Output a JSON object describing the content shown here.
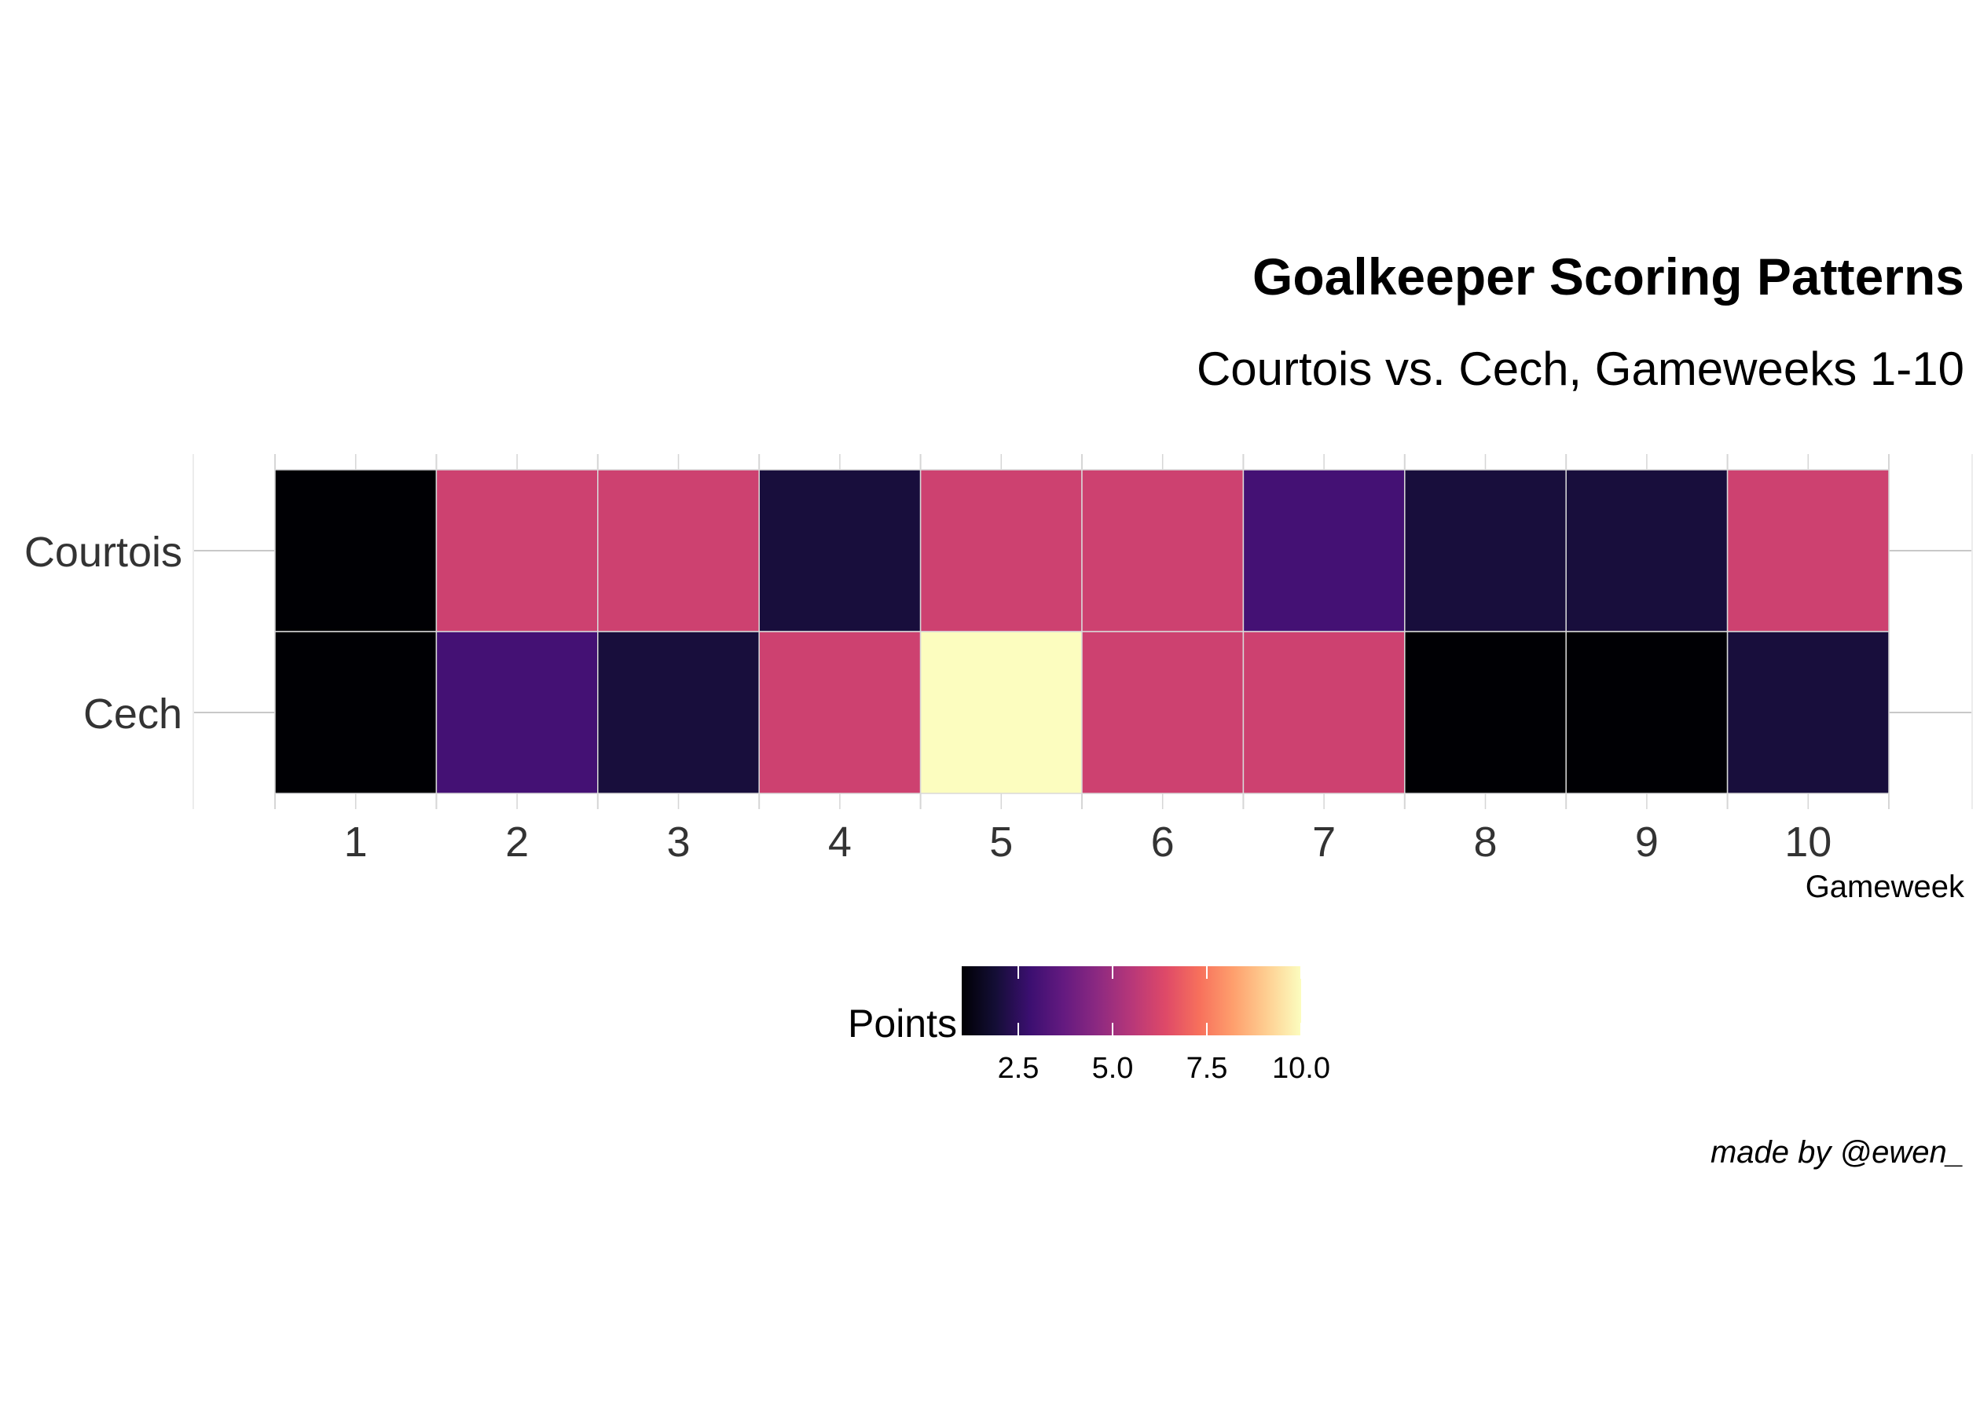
{
  "chart_data": {
    "type": "heatmap",
    "title": "Goalkeeper Scoring Patterns",
    "subtitle": "Courtois vs. Cech, Gameweeks 1-10",
    "xlabel": "Gameweek",
    "ylabel": "",
    "x": [
      "1",
      "2",
      "3",
      "4",
      "5",
      "6",
      "7",
      "8",
      "9",
      "10"
    ],
    "y": [
      "Courtois",
      "Cech"
    ],
    "series": [
      {
        "name": "Courtois",
        "values": [
          1,
          6,
          6,
          2,
          6,
          6,
          3,
          2,
          2,
          6
        ]
      },
      {
        "name": "Cech",
        "values": [
          1,
          3,
          2,
          6,
          10,
          6,
          6,
          1,
          1,
          2
        ]
      }
    ],
    "legend": {
      "title": "Points",
      "ticks": [
        "2.5",
        "5.0",
        "7.5",
        "10.0"
      ],
      "tick_values": [
        2.5,
        5.0,
        7.5,
        10.0
      ],
      "range": [
        1,
        10
      ],
      "palette": "magma",
      "position": "bottom"
    },
    "grid": true,
    "caption": "made by @ewen_"
  }
}
